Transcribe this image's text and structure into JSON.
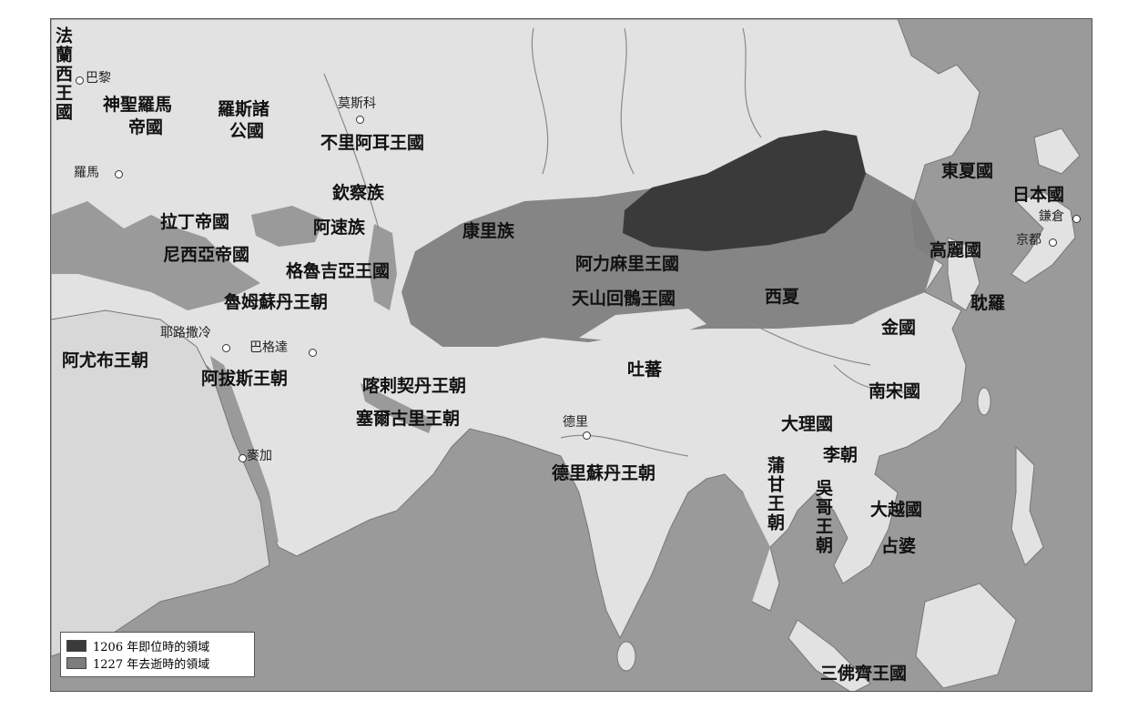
{
  "colors": {
    "sea": "#9a9a9a",
    "land": "#e2e2e2",
    "territory_1206": "#3a3a3a",
    "territory_1227": "#7d7d7d"
  },
  "regions": {
    "france": "法蘭西王國",
    "hre_line1": "神聖羅馬",
    "hre_line2": "帝國",
    "rus_line1": "羅斯諸",
    "rus_line2": "公國",
    "bulgar": "不里阿耳王國",
    "kipchak": "欽察族",
    "alan": "阿速族",
    "kangli": "康里族",
    "latin": "拉丁帝國",
    "nicaea": "尼西亞帝國",
    "georgia": "格魯吉亞王國",
    "rum": "魯姆蘇丹王朝",
    "almaliq": "阿力麻里王國",
    "uyghur": "天山回鶻王國",
    "xixia": "西夏",
    "dongxia": "東夏國",
    "japan": "日本國",
    "goryeo": "高麗國",
    "tamna": "耽羅",
    "jin": "金國",
    "ayyubid": "阿尤布王朝",
    "abbasid": "阿拔斯王朝",
    "qara_khitai": "喀剌契丹王朝",
    "ghurid": "塞爾古里王朝",
    "tibet": "吐蕃",
    "song": "南宋國",
    "dali": "大理國",
    "delhi": "德里蘇丹王朝",
    "pagan": "蒲甘王朝",
    "ly": "李朝",
    "khmer": "吳哥王朝",
    "daiviet": "大越國",
    "champa": "占婆",
    "srivijaya": "三佛齊王國"
  },
  "cities": {
    "paris": "巴黎",
    "rome": "羅馬",
    "moscow": "莫斯科",
    "jerusalem": "耶路撒冷",
    "baghdad": "巴格達",
    "mecca": "麥加",
    "delhi": "德里",
    "kyoto": "京都",
    "kamakura": "鎌倉"
  },
  "legend": {
    "item_1206": "1206 年即位時的領域",
    "item_1227": "1227 年去逝時的領域"
  }
}
